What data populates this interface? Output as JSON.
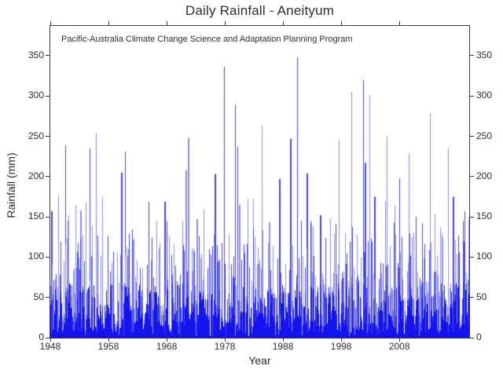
{
  "chart_data": {
    "type": "bar",
    "title": "Daily Rainfall - Aneityum",
    "subtitle": "Pacific-Australia Climate Change Science and Adaptation Planning Program",
    "xlabel": "Year",
    "ylabel": "Rainfall (mm)",
    "units": "mm",
    "x_range": [
      1948,
      2020
    ],
    "y_range": [
      0,
      387
    ],
    "x_ticks": [
      1948,
      1958,
      1968,
      1978,
      1988,
      1998,
      2008
    ],
    "y_ticks": [
      0,
      50,
      100,
      150,
      200,
      250,
      300,
      350
    ],
    "grid": false,
    "legend": false,
    "colors": {
      "dark": "#1414ee",
      "mid": "#4646ee",
      "light": "#8c8cf2",
      "axis": "#3a3a3a",
      "text": "#2f2f2f",
      "background": "#ffffff"
    },
    "peaks_year_mm": [
      [
        1948.1,
        157
      ],
      [
        1949.3,
        177
      ],
      [
        1950.6,
        239
      ],
      [
        1951.1,
        152
      ],
      [
        1952.3,
        165
      ],
      [
        1953.2,
        158
      ],
      [
        1954.1,
        168
      ],
      [
        1954.8,
        235
      ],
      [
        1955.8,
        254
      ],
      [
        1956.9,
        174
      ],
      [
        1960.1,
        205
      ],
      [
        1960.8,
        231
      ],
      [
        1964.9,
        169
      ],
      [
        1966.3,
        145
      ],
      [
        1967.6,
        169
      ],
      [
        1971.2,
        208
      ],
      [
        1971.6,
        248
      ],
      [
        1973.1,
        147
      ],
      [
        1974.3,
        159
      ],
      [
        1976.2,
        203
      ],
      [
        1977.8,
        336
      ],
      [
        1979.8,
        289
      ],
      [
        1980.1,
        237
      ],
      [
        1980.4,
        165
      ],
      [
        1981.9,
        172
      ],
      [
        1982.9,
        172
      ],
      [
        1984.3,
        263
      ],
      [
        1985.6,
        143
      ],
      [
        1987.3,
        197
      ],
      [
        1989.2,
        247
      ],
      [
        1990.4,
        348
      ],
      [
        1992.1,
        204
      ],
      [
        1994.4,
        152
      ],
      [
        1996.1,
        148
      ],
      [
        1997.6,
        246
      ],
      [
        1999.7,
        305
      ],
      [
        2001.7,
        320
      ],
      [
        2002.1,
        217
      ],
      [
        2002.9,
        301
      ],
      [
        2003.7,
        175
      ],
      [
        2005.5,
        170
      ],
      [
        2005.8,
        250
      ],
      [
        2007.1,
        164
      ],
      [
        2008.0,
        198
      ],
      [
        2009.6,
        229
      ],
      [
        2010.8,
        150
      ],
      [
        2013.2,
        279
      ],
      [
        2014.1,
        154
      ],
      [
        2016.3,
        235
      ],
      [
        2017.2,
        175
      ],
      [
        2019.2,
        157
      ],
      [
        2019.8,
        148
      ]
    ],
    "noise": {
      "seed": 1337,
      "columns": 533,
      "base_min": 8,
      "base_span": 60,
      "gap_prob": 0.07,
      "spike_prob": 0.85,
      "spike_span": 95,
      "tall_prob": 0.06,
      "cap_mm": 145
    }
  }
}
